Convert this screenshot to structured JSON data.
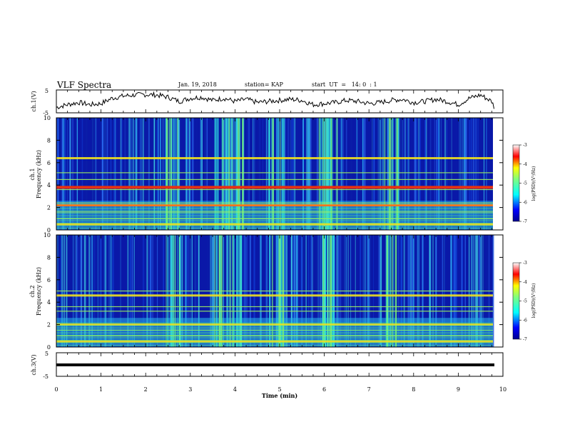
{
  "header": {
    "title": "VLF Spectra",
    "date": "Jan. 19, 2018",
    "station": "station= KAP",
    "start": "start  UT  =   14: 0  : 1"
  },
  "chart_data": [
    {
      "type": "line",
      "panel": "ch1",
      "ylabel": "ch.1(V)",
      "ylim": [
        -5,
        5
      ],
      "yticks": [
        "5",
        "-5"
      ],
      "xlim": [
        0,
        10
      ],
      "description_only": false,
      "x": [
        0,
        0.25,
        0.5,
        0.75,
        1.0,
        1.25,
        1.5,
        1.75,
        2.0,
        2.25,
        2.5,
        2.75,
        3.0,
        3.25,
        3.5,
        3.75,
        4.0,
        4.25,
        4.5,
        4.75,
        5.0,
        5.25,
        5.5,
        5.75,
        6.0,
        6.25,
        6.5,
        6.75,
        7.0,
        7.25,
        7.5,
        7.75,
        8.0,
        8.25,
        8.5,
        8.75,
        9.0,
        9.25,
        9.5,
        9.75,
        9.8
      ],
      "y": [
        -2.8,
        -1.5,
        -0.5,
        -1.5,
        -1.0,
        1.5,
        2.5,
        3.0,
        3.2,
        3.0,
        2.0,
        0.0,
        1.5,
        2.0,
        0.5,
        1.5,
        0.0,
        1.0,
        -0.5,
        0.0,
        0.5,
        1.0,
        0.5,
        -1.5,
        -1.0,
        -0.5,
        0.5,
        0.0,
        -1.0,
        -0.5,
        0.5,
        1.0,
        -0.5,
        0.0,
        1.0,
        0.0,
        -1.5,
        1.5,
        3.0,
        0.0,
        -2.5
      ]
    },
    {
      "type": "heatmap",
      "panel": "ch2-spectrogram-1",
      "ylabel": "ch.1\nFrequency (kHz)",
      "ylim": [
        0,
        10
      ],
      "yticks": [
        "0",
        "2",
        "4",
        "6",
        "8",
        "10"
      ],
      "xlim": [
        0,
        10
      ],
      "colorbar": {
        "label": "log(PSD)(V²/Hz)",
        "range": [
          -7,
          -3
        ],
        "ticks": [
          "-3",
          "-4",
          "-5",
          "-6",
          "-7"
        ]
      },
      "lines_khz": [
        0.5,
        1.0,
        1.6,
        2.2,
        2.4,
        3.6,
        3.8,
        4.5,
        5.1,
        6.4
      ],
      "burst_minutes": [
        2.5,
        3.6,
        3.9,
        4.8,
        5.9,
        6.0,
        7.4
      ]
    },
    {
      "type": "heatmap",
      "panel": "ch2-spectrogram-2",
      "ylabel": "ch.2\nFrequency (kHz)",
      "ylim": [
        0,
        10
      ],
      "yticks": [
        "0",
        "2",
        "4",
        "6",
        "8",
        "10"
      ],
      "xlim": [
        0,
        10
      ],
      "colorbar": {
        "label": "log(PSD)(V²/Hz)",
        "range": [
          -7,
          -3
        ],
        "ticks": [
          "-3",
          "-4",
          "-5",
          "-6",
          "-7"
        ]
      },
      "lines_khz": [
        0.5,
        1.0,
        1.5,
        2.0,
        3.2,
        3.6,
        4.6,
        5.0
      ],
      "burst_minutes": [
        2.5,
        3.6,
        3.9,
        4.8,
        5.9,
        6.0,
        7.4
      ]
    },
    {
      "type": "line",
      "panel": "ch3",
      "ylabel": "ch.3(V)",
      "ylim": [
        -5,
        5
      ],
      "yticks": [
        "5",
        "-5"
      ],
      "xlim": [
        0,
        10
      ],
      "xlabel": "Time (min)",
      "xticks": [
        "0",
        "1",
        "2",
        "3",
        "4",
        "5",
        "6",
        "7",
        "8",
        "9",
        "10"
      ],
      "x": [
        0,
        9.8
      ],
      "y": [
        0,
        0
      ]
    }
  ]
}
